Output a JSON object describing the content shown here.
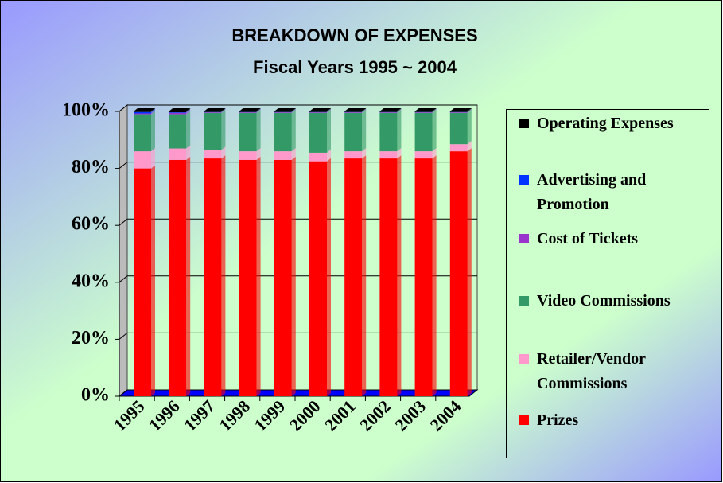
{
  "chart_data": {
    "type": "bar",
    "stacked": true,
    "title": "BREAKDOWN OF EXPENSES",
    "subtitle": "Fiscal Years 1995 ~ 2004",
    "categories": [
      "1995",
      "1996",
      "1997",
      "1998",
      "1999",
      "2000",
      "2001",
      "2002",
      "2003",
      "2004"
    ],
    "series": [
      {
        "name": "Prizes",
        "color": "#ff0000",
        "values": [
          80,
          83,
          83.5,
          83,
          83,
          82.5,
          83.5,
          83.5,
          83.5,
          86
        ]
      },
      {
        "name": "Retailer/Vendor Commissions",
        "color": "#ff99cc",
        "values": [
          6,
          4,
          3,
          3,
          3,
          3,
          2.5,
          2.5,
          2.5,
          2.5
        ]
      },
      {
        "name": "Video Commissions",
        "color": "#339966",
        "values": [
          13,
          12,
          13,
          13.5,
          13.5,
          14,
          13.5,
          13.5,
          13.5,
          11
        ]
      },
      {
        "name": "Cost of Tickets",
        "color": "#9933cc",
        "values": [
          0.3,
          0.5,
          0.2,
          0.2,
          0.2,
          0.2,
          0.2,
          0.2,
          0.2,
          0.2
        ]
      },
      {
        "name": "Advertising and Promotion",
        "color": "#0033ff",
        "values": [
          0.5,
          0.2,
          0.1,
          0.1,
          0.1,
          0.1,
          0.1,
          0.1,
          0.1,
          0.1
        ]
      },
      {
        "name": "Operating Expenses",
        "color": "#000000",
        "values": [
          0.2,
          0.3,
          0.2,
          0.2,
          0.2,
          0.2,
          0.2,
          0.2,
          0.2,
          0.2
        ]
      }
    ],
    "ylim": [
      0,
      100
    ],
    "yticks": [
      {
        "value": 0,
        "label": "0%"
      },
      {
        "value": 20,
        "label": "20%"
      },
      {
        "value": 40,
        "label": "40%"
      },
      {
        "value": 60,
        "label": "60%"
      },
      {
        "value": 80,
        "label": "80%"
      },
      {
        "value": 100,
        "label": "100%"
      }
    ],
    "grid": true
  }
}
